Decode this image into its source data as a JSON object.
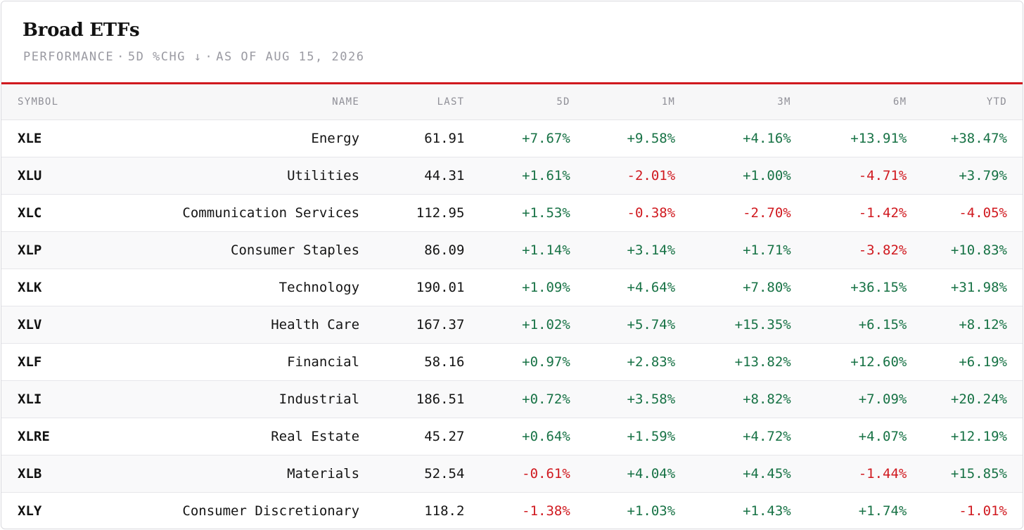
{
  "header": {
    "title": "Broad ETFs",
    "subtitle_parts": [
      "PERFORMANCE",
      "5D %CHG ↓",
      "AS OF AUG 15, 2026"
    ],
    "separator": "·"
  },
  "colors": {
    "accent_red": "#d0191f",
    "positive": "#177245",
    "negative": "#d0191f"
  },
  "table": {
    "columns": [
      "SYMBOL",
      "NAME",
      "LAST",
      "5D",
      "1M",
      "3M",
      "6M",
      "YTD"
    ],
    "rows": [
      {
        "symbol": "XLE",
        "name": "Energy",
        "last": "61.91",
        "d5": "+7.67%",
        "m1": "+9.58%",
        "m3": "+4.16%",
        "m6": "+13.91%",
        "ytd": "+38.47%"
      },
      {
        "symbol": "XLU",
        "name": "Utilities",
        "last": "44.31",
        "d5": "+1.61%",
        "m1": "-2.01%",
        "m3": "+1.00%",
        "m6": "-4.71%",
        "ytd": "+3.79%"
      },
      {
        "symbol": "XLC",
        "name": "Communication Services",
        "last": "112.95",
        "d5": "+1.53%",
        "m1": "-0.38%",
        "m3": "-2.70%",
        "m6": "-1.42%",
        "ytd": "-4.05%"
      },
      {
        "symbol": "XLP",
        "name": "Consumer Staples",
        "last": "86.09",
        "d5": "+1.14%",
        "m1": "+3.14%",
        "m3": "+1.71%",
        "m6": "-3.82%",
        "ytd": "+10.83%"
      },
      {
        "symbol": "XLK",
        "name": "Technology",
        "last": "190.01",
        "d5": "+1.09%",
        "m1": "+4.64%",
        "m3": "+7.80%",
        "m6": "+36.15%",
        "ytd": "+31.98%"
      },
      {
        "symbol": "XLV",
        "name": "Health Care",
        "last": "167.37",
        "d5": "+1.02%",
        "m1": "+5.74%",
        "m3": "+15.35%",
        "m6": "+6.15%",
        "ytd": "+8.12%"
      },
      {
        "symbol": "XLF",
        "name": "Financial",
        "last": "58.16",
        "d5": "+0.97%",
        "m1": "+2.83%",
        "m3": "+13.82%",
        "m6": "+12.60%",
        "ytd": "+6.19%"
      },
      {
        "symbol": "XLI",
        "name": "Industrial",
        "last": "186.51",
        "d5": "+0.72%",
        "m1": "+3.58%",
        "m3": "+8.82%",
        "m6": "+7.09%",
        "ytd": "+20.24%"
      },
      {
        "symbol": "XLRE",
        "name": "Real Estate",
        "last": "45.27",
        "d5": "+0.64%",
        "m1": "+1.59%",
        "m3": "+4.72%",
        "m6": "+4.07%",
        "ytd": "+12.19%"
      },
      {
        "symbol": "XLB",
        "name": "Materials",
        "last": "52.54",
        "d5": "-0.61%",
        "m1": "+4.04%",
        "m3": "+4.45%",
        "m6": "-1.44%",
        "ytd": "+15.85%"
      },
      {
        "symbol": "XLY",
        "name": "Consumer Discretionary",
        "last": "118.2",
        "d5": "-1.38%",
        "m1": "+1.03%",
        "m3": "+1.43%",
        "m6": "+1.74%",
        "ytd": "-1.01%"
      }
    ]
  }
}
